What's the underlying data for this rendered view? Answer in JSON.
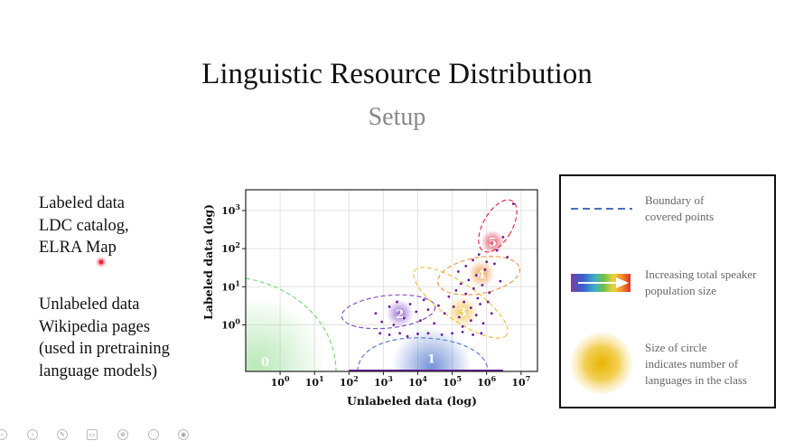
{
  "slide": {
    "title": "Linguistic Resource Distribution",
    "subtitle": "Setup"
  },
  "left_panel": {
    "labeled_heading": "Labeled data",
    "labeled_lines": [
      "LDC catalog,",
      "ELRA Map"
    ],
    "unlabeled_heading": "Unlabeled data",
    "unlabeled_lines": [
      "Wikipedia pages",
      "(used in pretraining",
      "language models)"
    ]
  },
  "legend": {
    "boundary": {
      "lines": [
        "Boundary of",
        "covered points"
      ],
      "color": "#4a6fc0"
    },
    "speaker": {
      "lines": [
        "Increasing total speaker",
        "population size"
      ]
    },
    "circle": {
      "lines": [
        "Size of  circle",
        "indicates number of",
        "languages in the class"
      ]
    }
  },
  "colors": {
    "points": "#6a1b9a",
    "class0": "#7fd67f",
    "class1": "#5b7fd0",
    "class2": "#8a55c8",
    "class3": "#f2c14a",
    "class4": "#ef9a4a",
    "class5": "#e0304a"
  },
  "chart_data": {
    "type": "scatter",
    "xlabel": "Unlabeled data (log)",
    "ylabel": "Labeled data (log)",
    "x_scale": "log",
    "y_scale": "log",
    "xlim": [
      0.1,
      30000000
    ],
    "ylim": [
      0.06,
      3500
    ],
    "x_ticks": [
      {
        "value": 1,
        "base": "10",
        "exp": "0"
      },
      {
        "value": 10,
        "base": "10",
        "exp": "1"
      },
      {
        "value": 100,
        "base": "10",
        "exp": "2"
      },
      {
        "value": 1000,
        "base": "10",
        "exp": "3"
      },
      {
        "value": 10000,
        "base": "10",
        "exp": "4"
      },
      {
        "value": 100000,
        "base": "10",
        "exp": "5"
      },
      {
        "value": 1000000,
        "base": "10",
        "exp": "6"
      },
      {
        "value": 10000000,
        "base": "10",
        "exp": "7"
      }
    ],
    "y_ticks": [
      {
        "value": 1,
        "base": "10",
        "exp": "0"
      },
      {
        "value": 10,
        "base": "10",
        "exp": "1"
      },
      {
        "value": 100,
        "base": "10",
        "exp": "2"
      },
      {
        "value": 1000,
        "base": "10",
        "exp": "3"
      }
    ],
    "grid": true,
    "classes": [
      {
        "label": "0",
        "x": 0.2,
        "y": 0.08,
        "color": "#7fd67f"
      },
      {
        "label": "1",
        "x": 25000,
        "y": 0.08,
        "color": "#5b7fd0"
      },
      {
        "label": "2",
        "x": 3000,
        "y": 2,
        "color": "#8a55c8"
      },
      {
        "label": "3",
        "x": 200000,
        "y": 2.2,
        "color": "#f2c14a"
      },
      {
        "label": "4",
        "x": 700000,
        "y": 22,
        "color": "#ef9a4a"
      },
      {
        "label": "5",
        "x": 1500000,
        "y": 150,
        "color": "#e0304a"
      }
    ],
    "points": [
      [
        600,
        2
      ],
      [
        900,
        1.2
      ],
      [
        1500,
        3
      ],
      [
        2000,
        1
      ],
      [
        2500,
        4
      ],
      [
        4000,
        1.5
      ],
      [
        6000,
        3.5
      ],
      [
        9000,
        2.2
      ],
      [
        12000,
        1.3
      ],
      [
        15000,
        4.5
      ],
      [
        20000,
        2.5
      ],
      [
        30000,
        1.1
      ],
      [
        40000,
        3.2
      ],
      [
        60000,
        2
      ],
      [
        80000,
        5.5
      ],
      [
        110000,
        3
      ],
      [
        130000,
        8
      ],
      [
        160000,
        1.6
      ],
      [
        180000,
        12
      ],
      [
        220000,
        4
      ],
      [
        250000,
        6.5
      ],
      [
        300000,
        15
      ],
      [
        350000,
        2.8
      ],
      [
        420000,
        9
      ],
      [
        500000,
        20
      ],
      [
        550000,
        5
      ],
      [
        650000,
        3.5
      ],
      [
        750000,
        11
      ],
      [
        900000,
        28
      ],
      [
        1200000,
        7
      ],
      [
        1400000,
        2
      ],
      [
        1700000,
        40
      ],
      [
        2000000,
        90
      ],
      [
        2500000,
        14
      ],
      [
        3000000,
        200
      ],
      [
        4000000,
        60
      ],
      [
        6000000,
        1500
      ],
      [
        800,
        0.6
      ],
      [
        1500,
        0.55
      ],
      [
        3000,
        0.6
      ],
      [
        5000,
        0.5
      ],
      [
        10000,
        0.58
      ],
      [
        20000,
        0.6
      ],
      [
        50000,
        0.55
      ],
      [
        100000,
        0.6
      ],
      [
        200000,
        0.65
      ],
      [
        400000,
        0.55
      ],
      [
        700000,
        0.6
      ],
      [
        150000,
        25
      ],
      [
        250000,
        35
      ],
      [
        400000,
        50
      ],
      [
        600000,
        70
      ],
      [
        1000000,
        45
      ],
      [
        200000,
        0.9
      ],
      [
        350000,
        1.3
      ],
      [
        500000,
        1.8
      ],
      [
        800000,
        1.1
      ],
      [
        1100000,
        4
      ]
    ]
  },
  "toolbar": {
    "icons": [
      "prev-icon",
      "next-icon",
      "pen-icon",
      "slides-icon",
      "zoom-icon",
      "more-icon",
      "camera-icon"
    ]
  }
}
